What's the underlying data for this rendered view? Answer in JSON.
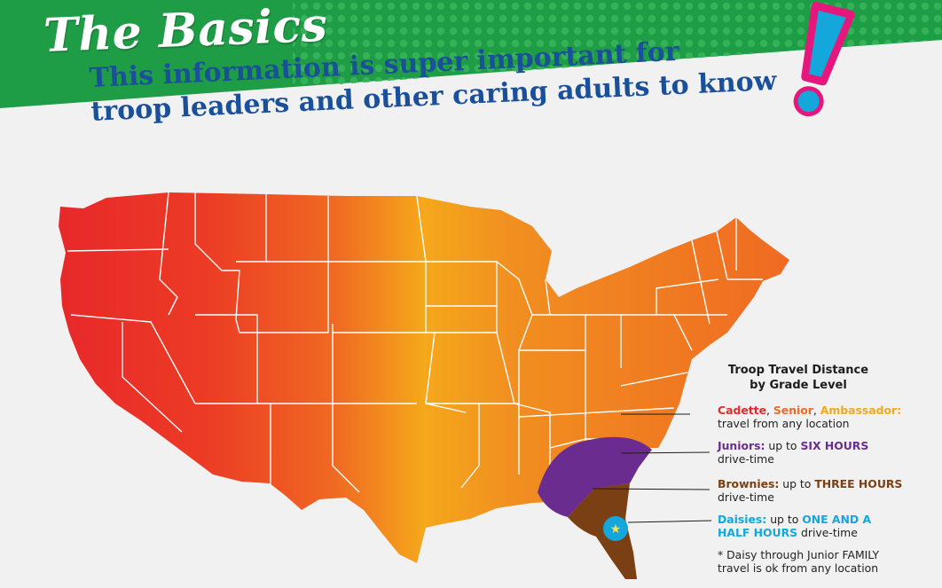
{
  "header": {
    "title": "The Basics",
    "subtitle_line1": "This information is super important for",
    "subtitle_line2": "troop leaders and other caring adults to know"
  },
  "legend": {
    "title_line1": "Troop Travel Distance",
    "title_line2": "by Grade Level",
    "entries": [
      {
        "name_1": "Cadette",
        "sep_1": ", ",
        "name_2": "Senior",
        "sep_2": ", ",
        "name_3": "Ambassador:",
        "text": "travel from any location"
      },
      {
        "name": "Juniors:",
        "text_a": " up to ",
        "emph": "SIX HOURS",
        "text_b": " drive-time"
      },
      {
        "name": "Brownies:",
        "text_a": " up to ",
        "emph": "THREE HOURS",
        "text_b": " drive-time"
      },
      {
        "name": "Daisies:",
        "text_a": " up to ",
        "emph": "ONE AND A HALF HOURS",
        "text_b": " drive-time"
      }
    ],
    "footnote": "* Daisy through Junior FAMILY travel is ok from any location"
  },
  "colors": {
    "banner_green": "#1f9c46",
    "subtitle_blue": "#1a4f99",
    "map_red": "#e8282a",
    "map_orange": "#f06a22",
    "map_yellow": "#f5a81b",
    "juniors_purple": "#6b2c90",
    "brownies_brown": "#7a3f12",
    "daisies_cyan": "#13a7dc",
    "exclaim_pink": "#e6177c"
  }
}
